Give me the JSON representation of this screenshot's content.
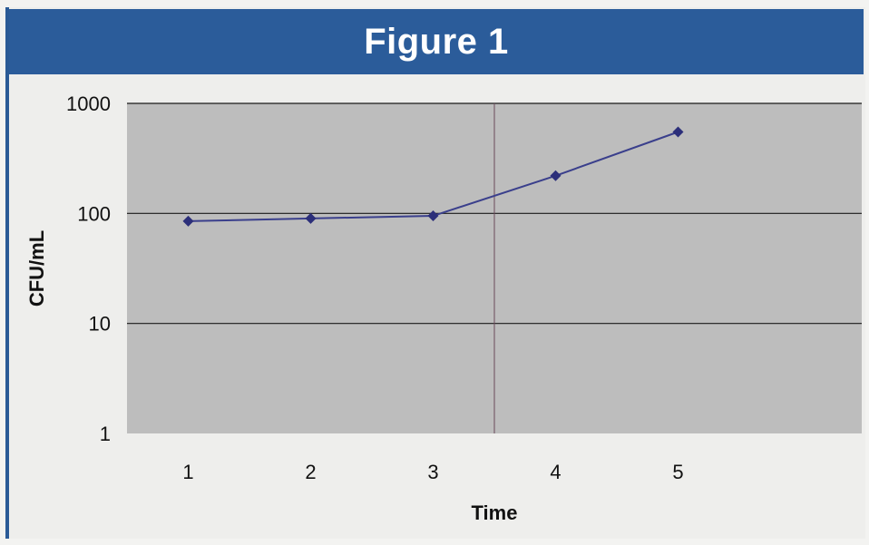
{
  "page": {
    "header_title": "Figure 1"
  },
  "chart_data": {
    "type": "line",
    "title": "Figure 1",
    "xlabel": "Time",
    "ylabel": "CFU/mL",
    "x": [
      1,
      2,
      3,
      4,
      5
    ],
    "series": [
      {
        "values": [
          85,
          90,
          95,
          220,
          550
        ]
      }
    ],
    "y_scale": "log",
    "ylim": [
      1,
      1000
    ],
    "y_ticks": [
      "1",
      "10",
      "100",
      "1000"
    ],
    "x_ticks": [
      "1",
      "2",
      "3",
      "4",
      "5"
    ],
    "grid": true,
    "colors": {
      "header": "#2b5c9a",
      "plot_area": "#bdbdbd",
      "line": "#3a3f8c",
      "marker": "#2c2f7a",
      "gridline": "#1a1a1a"
    }
  }
}
